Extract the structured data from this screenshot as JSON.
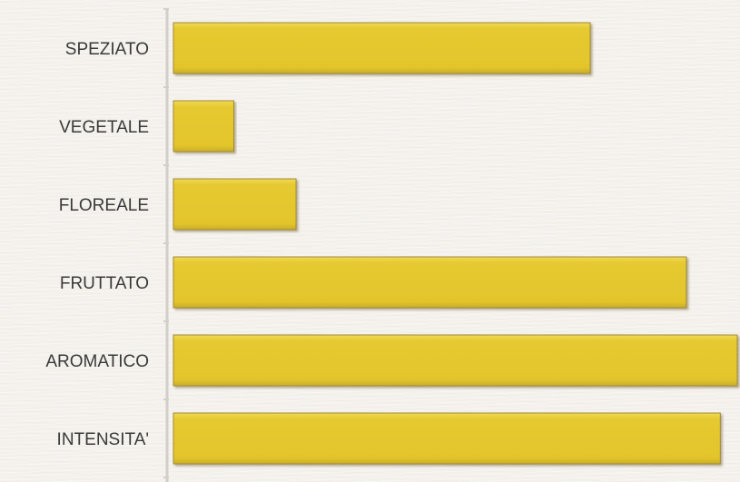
{
  "chart_data": {
    "type": "bar",
    "orientation": "horizontal",
    "title": "",
    "xlabel": "",
    "ylabel": "",
    "categories": [
      "SPEZIATO",
      "VEGETALE",
      "FLOREALE",
      "FRUTTATO",
      "AROMATICO",
      "INTENSITA'"
    ],
    "values": [
      74,
      11,
      22,
      91,
      100,
      97
    ],
    "xlim": [
      0,
      100
    ],
    "grid": false,
    "legend": "none",
    "bar_color": "#e6c930",
    "bar_border_color": "#a08a3a"
  }
}
